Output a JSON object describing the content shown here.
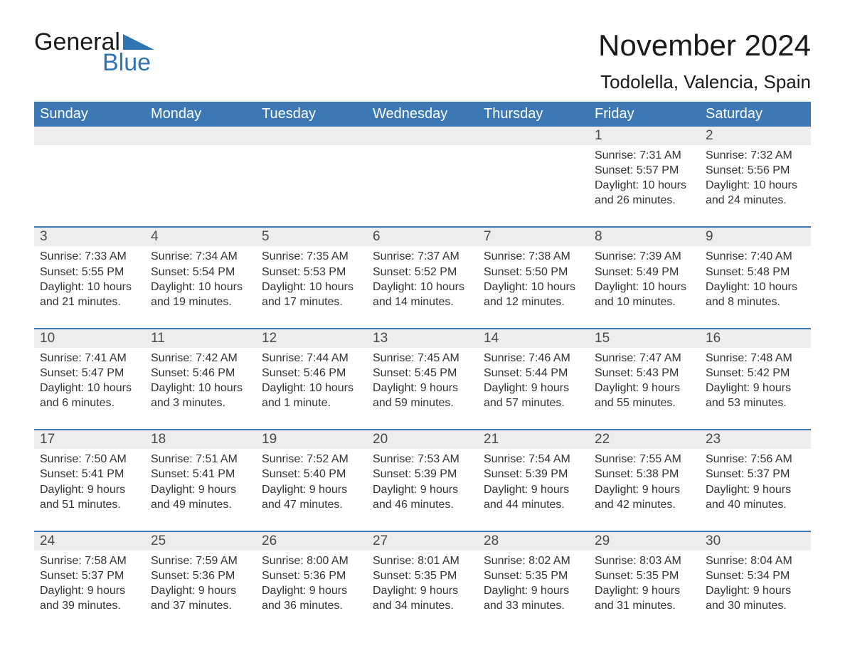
{
  "logo": {
    "text1": "General",
    "text2": "Blue",
    "text1_color": "#1a1a1a",
    "text2_color": "#2e75b6",
    "triangle_color": "#2e75b6"
  },
  "title": "November 2024",
  "location": "Todolella, Valencia, Spain",
  "colors": {
    "header_bg": "#3b78b5",
    "header_text": "#ffffff",
    "daynum_bg": "#ededed",
    "daynum_text": "#4a4a4a",
    "body_text": "#333333",
    "week_rule": "#3b78b5",
    "page_bg": "#ffffff"
  },
  "weekdays": [
    "Sunday",
    "Monday",
    "Tuesday",
    "Wednesday",
    "Thursday",
    "Friday",
    "Saturday"
  ],
  "weeks": [
    {
      "days": [
        null,
        null,
        null,
        null,
        null,
        {
          "n": "1",
          "sunrise": "Sunrise: 7:31 AM",
          "sunset": "Sunset: 5:57 PM",
          "dl1": "Daylight: 10 hours",
          "dl2": "and 26 minutes."
        },
        {
          "n": "2",
          "sunrise": "Sunrise: 7:32 AM",
          "sunset": "Sunset: 5:56 PM",
          "dl1": "Daylight: 10 hours",
          "dl2": "and 24 minutes."
        }
      ]
    },
    {
      "days": [
        {
          "n": "3",
          "sunrise": "Sunrise: 7:33 AM",
          "sunset": "Sunset: 5:55 PM",
          "dl1": "Daylight: 10 hours",
          "dl2": "and 21 minutes."
        },
        {
          "n": "4",
          "sunrise": "Sunrise: 7:34 AM",
          "sunset": "Sunset: 5:54 PM",
          "dl1": "Daylight: 10 hours",
          "dl2": "and 19 minutes."
        },
        {
          "n": "5",
          "sunrise": "Sunrise: 7:35 AM",
          "sunset": "Sunset: 5:53 PM",
          "dl1": "Daylight: 10 hours",
          "dl2": "and 17 minutes."
        },
        {
          "n": "6",
          "sunrise": "Sunrise: 7:37 AM",
          "sunset": "Sunset: 5:52 PM",
          "dl1": "Daylight: 10 hours",
          "dl2": "and 14 minutes."
        },
        {
          "n": "7",
          "sunrise": "Sunrise: 7:38 AM",
          "sunset": "Sunset: 5:50 PM",
          "dl1": "Daylight: 10 hours",
          "dl2": "and 12 minutes."
        },
        {
          "n": "8",
          "sunrise": "Sunrise: 7:39 AM",
          "sunset": "Sunset: 5:49 PM",
          "dl1": "Daylight: 10 hours",
          "dl2": "and 10 minutes."
        },
        {
          "n": "9",
          "sunrise": "Sunrise: 7:40 AM",
          "sunset": "Sunset: 5:48 PM",
          "dl1": "Daylight: 10 hours",
          "dl2": "and 8 minutes."
        }
      ]
    },
    {
      "days": [
        {
          "n": "10",
          "sunrise": "Sunrise: 7:41 AM",
          "sunset": "Sunset: 5:47 PM",
          "dl1": "Daylight: 10 hours",
          "dl2": "and 6 minutes."
        },
        {
          "n": "11",
          "sunrise": "Sunrise: 7:42 AM",
          "sunset": "Sunset: 5:46 PM",
          "dl1": "Daylight: 10 hours",
          "dl2": "and 3 minutes."
        },
        {
          "n": "12",
          "sunrise": "Sunrise: 7:44 AM",
          "sunset": "Sunset: 5:46 PM",
          "dl1": "Daylight: 10 hours",
          "dl2": "and 1 minute."
        },
        {
          "n": "13",
          "sunrise": "Sunrise: 7:45 AM",
          "sunset": "Sunset: 5:45 PM",
          "dl1": "Daylight: 9 hours",
          "dl2": "and 59 minutes."
        },
        {
          "n": "14",
          "sunrise": "Sunrise: 7:46 AM",
          "sunset": "Sunset: 5:44 PM",
          "dl1": "Daylight: 9 hours",
          "dl2": "and 57 minutes."
        },
        {
          "n": "15",
          "sunrise": "Sunrise: 7:47 AM",
          "sunset": "Sunset: 5:43 PM",
          "dl1": "Daylight: 9 hours",
          "dl2": "and 55 minutes."
        },
        {
          "n": "16",
          "sunrise": "Sunrise: 7:48 AM",
          "sunset": "Sunset: 5:42 PM",
          "dl1": "Daylight: 9 hours",
          "dl2": "and 53 minutes."
        }
      ]
    },
    {
      "days": [
        {
          "n": "17",
          "sunrise": "Sunrise: 7:50 AM",
          "sunset": "Sunset: 5:41 PM",
          "dl1": "Daylight: 9 hours",
          "dl2": "and 51 minutes."
        },
        {
          "n": "18",
          "sunrise": "Sunrise: 7:51 AM",
          "sunset": "Sunset: 5:41 PM",
          "dl1": "Daylight: 9 hours",
          "dl2": "and 49 minutes."
        },
        {
          "n": "19",
          "sunrise": "Sunrise: 7:52 AM",
          "sunset": "Sunset: 5:40 PM",
          "dl1": "Daylight: 9 hours",
          "dl2": "and 47 minutes."
        },
        {
          "n": "20",
          "sunrise": "Sunrise: 7:53 AM",
          "sunset": "Sunset: 5:39 PM",
          "dl1": "Daylight: 9 hours",
          "dl2": "and 46 minutes."
        },
        {
          "n": "21",
          "sunrise": "Sunrise: 7:54 AM",
          "sunset": "Sunset: 5:39 PM",
          "dl1": "Daylight: 9 hours",
          "dl2": "and 44 minutes."
        },
        {
          "n": "22",
          "sunrise": "Sunrise: 7:55 AM",
          "sunset": "Sunset: 5:38 PM",
          "dl1": "Daylight: 9 hours",
          "dl2": "and 42 minutes."
        },
        {
          "n": "23",
          "sunrise": "Sunrise: 7:56 AM",
          "sunset": "Sunset: 5:37 PM",
          "dl1": "Daylight: 9 hours",
          "dl2": "and 40 minutes."
        }
      ]
    },
    {
      "days": [
        {
          "n": "24",
          "sunrise": "Sunrise: 7:58 AM",
          "sunset": "Sunset: 5:37 PM",
          "dl1": "Daylight: 9 hours",
          "dl2": "and 39 minutes."
        },
        {
          "n": "25",
          "sunrise": "Sunrise: 7:59 AM",
          "sunset": "Sunset: 5:36 PM",
          "dl1": "Daylight: 9 hours",
          "dl2": "and 37 minutes."
        },
        {
          "n": "26",
          "sunrise": "Sunrise: 8:00 AM",
          "sunset": "Sunset: 5:36 PM",
          "dl1": "Daylight: 9 hours",
          "dl2": "and 36 minutes."
        },
        {
          "n": "27",
          "sunrise": "Sunrise: 8:01 AM",
          "sunset": "Sunset: 5:35 PM",
          "dl1": "Daylight: 9 hours",
          "dl2": "and 34 minutes."
        },
        {
          "n": "28",
          "sunrise": "Sunrise: 8:02 AM",
          "sunset": "Sunset: 5:35 PM",
          "dl1": "Daylight: 9 hours",
          "dl2": "and 33 minutes."
        },
        {
          "n": "29",
          "sunrise": "Sunrise: 8:03 AM",
          "sunset": "Sunset: 5:35 PM",
          "dl1": "Daylight: 9 hours",
          "dl2": "and 31 minutes."
        },
        {
          "n": "30",
          "sunrise": "Sunrise: 8:04 AM",
          "sunset": "Sunset: 5:34 PM",
          "dl1": "Daylight: 9 hours",
          "dl2": "and 30 minutes."
        }
      ]
    }
  ]
}
